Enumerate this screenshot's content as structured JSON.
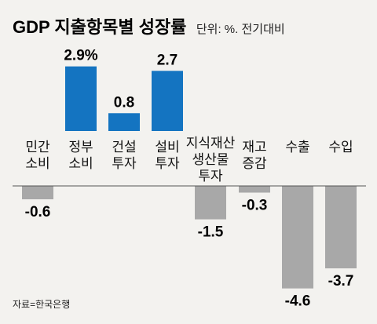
{
  "chart_data": {
    "type": "bar",
    "title": "GDP 지출항목별 성장률",
    "subtitle": "단위: %. 전기대비",
    "source": "자료=한국은행",
    "categories": [
      [
        "민간",
        "소비"
      ],
      [
        "정부",
        "소비"
      ],
      [
        "건설",
        "투자"
      ],
      [
        "설비",
        "투자"
      ],
      [
        "지식재산",
        "생산물",
        "투자"
      ],
      [
        "재고",
        "증감"
      ],
      [
        "수출"
      ],
      [
        "수입"
      ]
    ],
    "values": [
      -0.6,
      2.9,
      0.8,
      2.7,
      -1.5,
      -0.3,
      -4.6,
      -3.7
    ],
    "value_labels": [
      "-0.6",
      "2.9%",
      "0.8",
      "2.7",
      "-1.5",
      "-0.3",
      "-4.6",
      "-3.7"
    ],
    "colors": {
      "positive": "#1474c1",
      "negative": "#a8a8a8",
      "axis": "#555555"
    },
    "grid": false,
    "legend": "none"
  }
}
